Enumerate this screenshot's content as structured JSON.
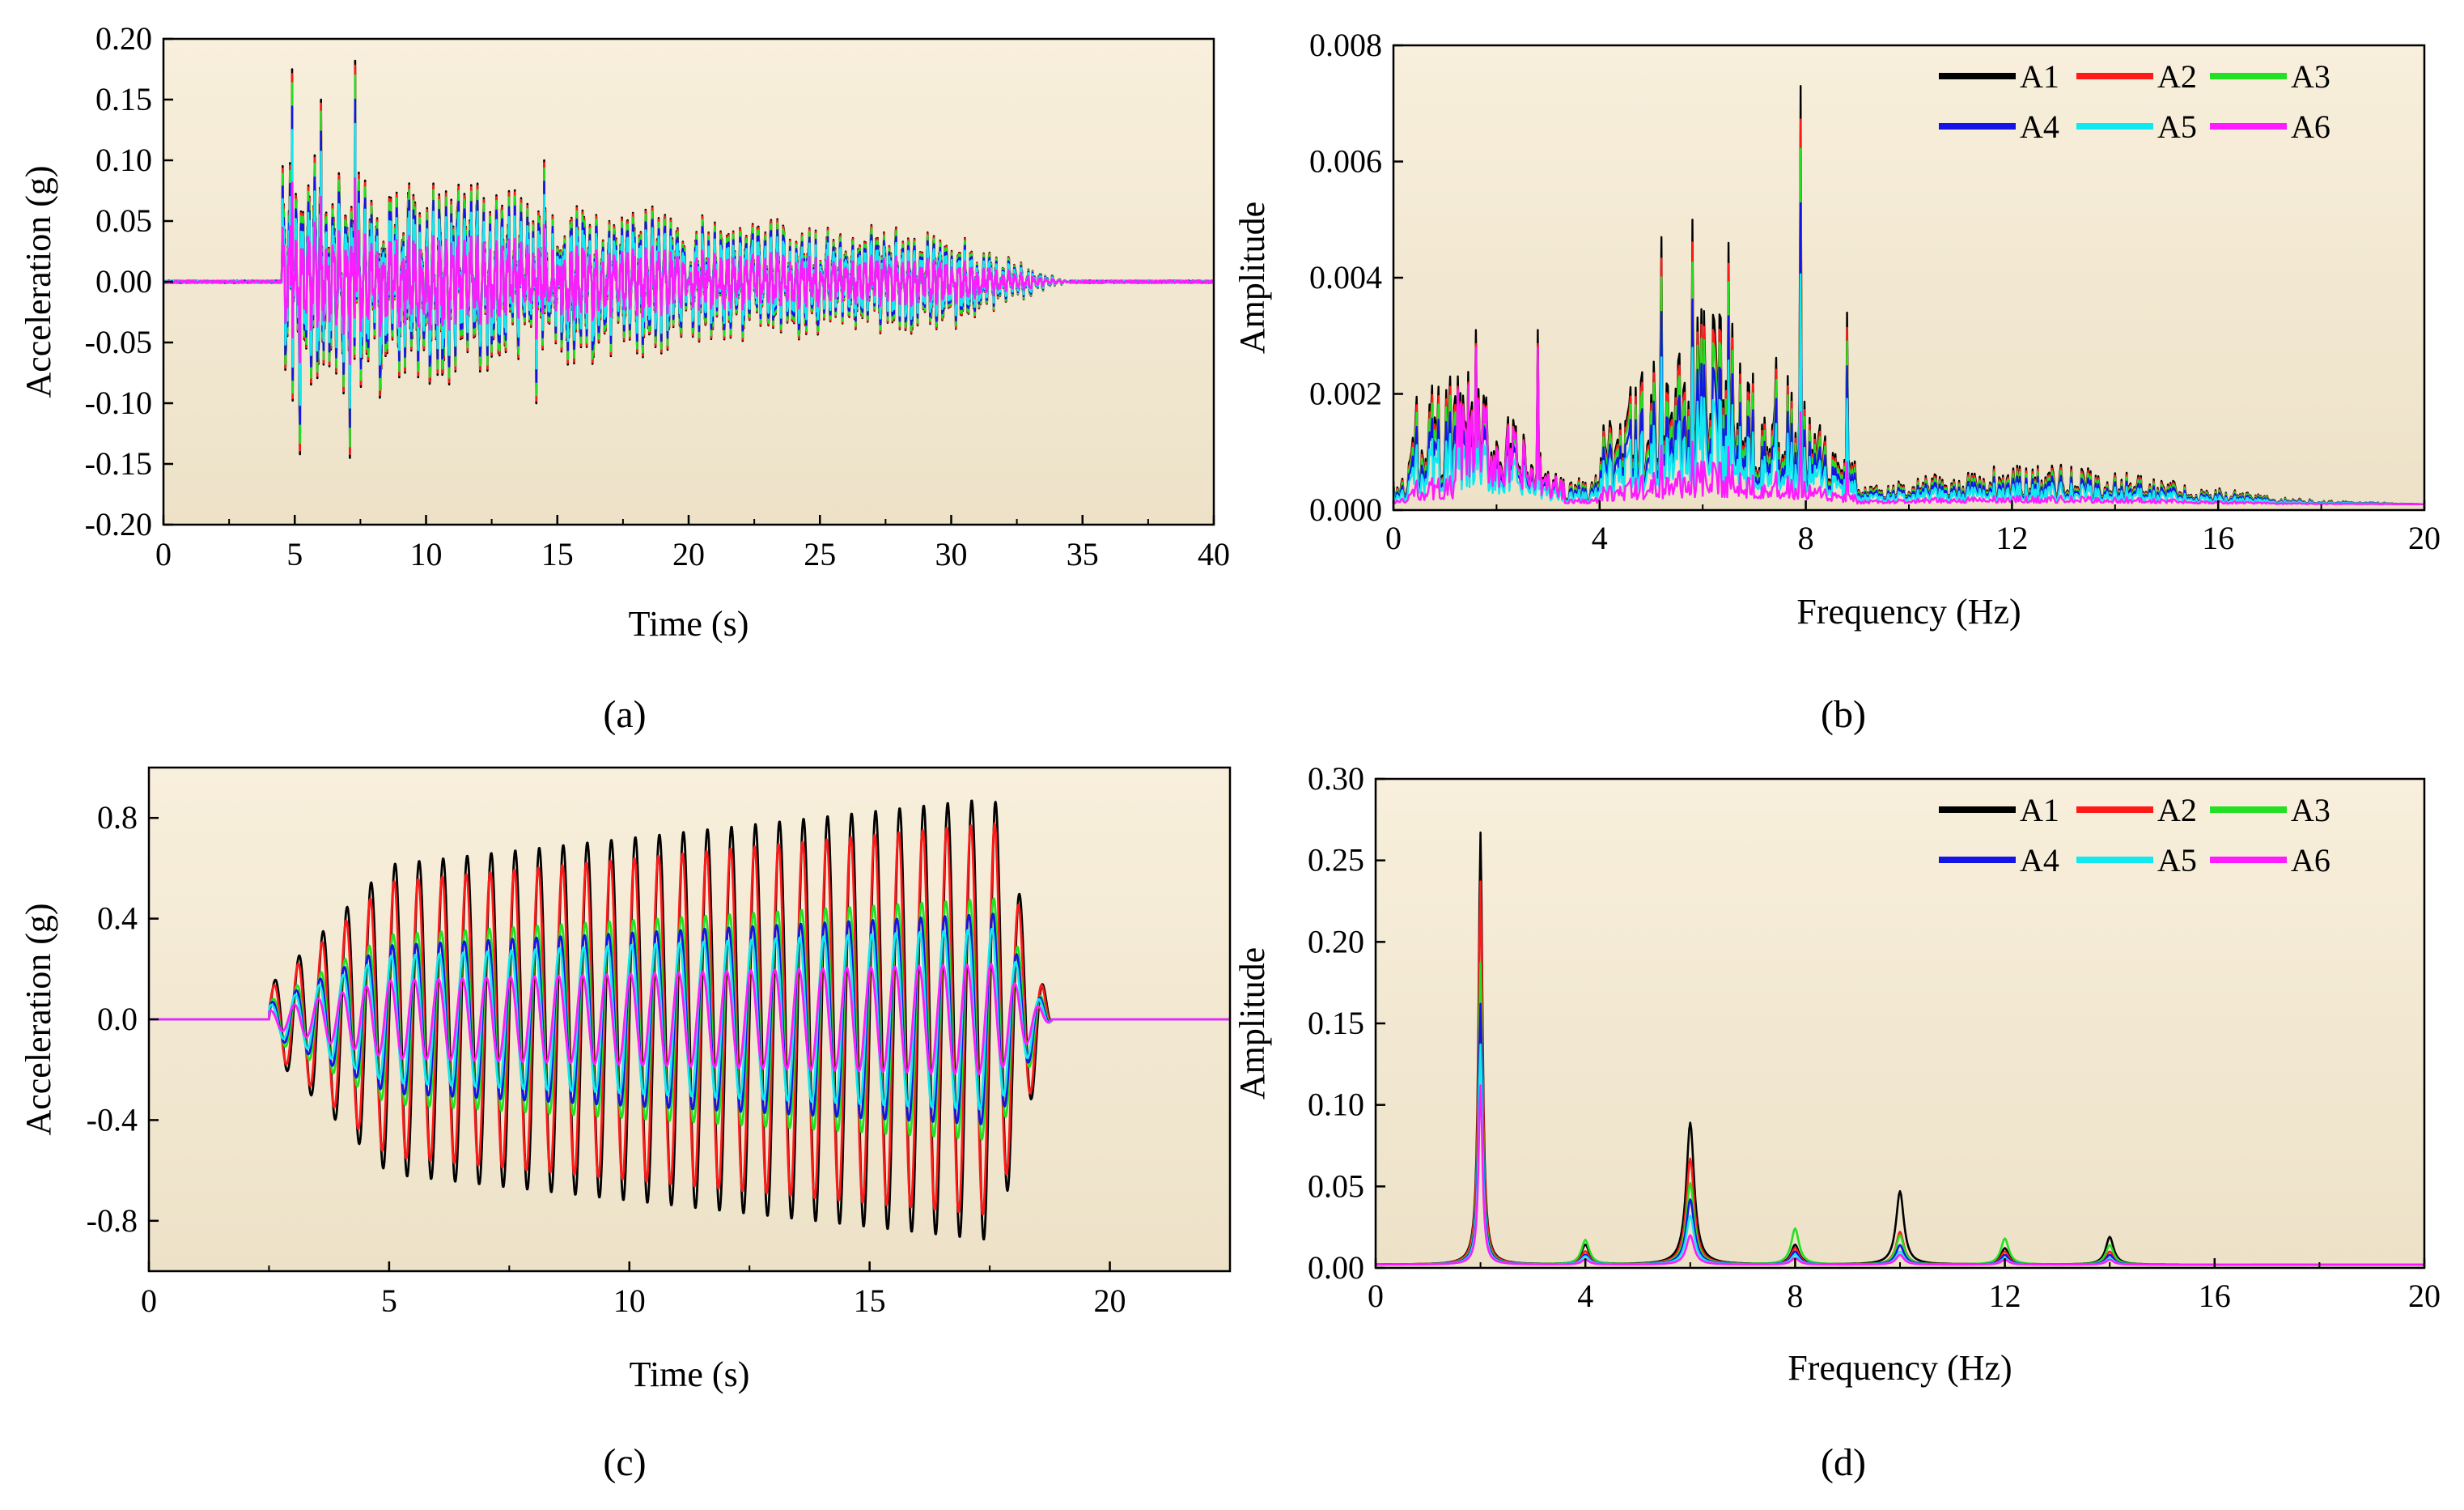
{
  "figure": {
    "colors": {
      "A1": "#000000",
      "A2": "#ff1a1a",
      "A3": "#22e022",
      "A4": "#1414e6",
      "A5": "#12e8f0",
      "A6": "#ff1aff",
      "plot_bg_top": "#f8efdc",
      "plot_bg_bottom": "#ede2c8"
    }
  },
  "chart_data": [
    {
      "id": "a",
      "panel_label": "(a)",
      "type": "line",
      "title": "",
      "xlabel": "Time (s)",
      "ylabel": "Acceleration (g)",
      "xlim": [
        0,
        40
      ],
      "ylim": [
        -0.2,
        0.2
      ],
      "xticks": [
        0,
        5,
        10,
        15,
        20,
        25,
        30,
        35,
        40
      ],
      "xtick_labels": [
        "0",
        "5",
        "10",
        "15",
        "20",
        "25",
        "30",
        "35",
        "40"
      ],
      "yticks": [
        -0.2,
        -0.15,
        -0.1,
        -0.05,
        0,
        0.05,
        0.1,
        0.15,
        0.2
      ],
      "ytick_labels": [
        "-0.20",
        "-0.15",
        "-0.10",
        "-0.05",
        "0.00",
        "0.05",
        "0.10",
        "0.15",
        "0.20"
      ],
      "signal": {
        "kind": "seismic",
        "onset": 4.5,
        "end": 34.5,
        "peaks": [
          {
            "t": 4.9,
            "v": 0.175
          },
          {
            "t": 5.2,
            "v": -0.142
          },
          {
            "t": 6.0,
            "v": 0.15
          },
          {
            "t": 7.3,
            "v": 0.182
          },
          {
            "t": 7.1,
            "v": -0.145
          },
          {
            "t": 14.5,
            "v": 0.1
          },
          {
            "t": 14.2,
            "v": -0.1
          }
        ]
      },
      "series": [
        {
          "name": "A1",
          "peak": 0.182
        },
        {
          "name": "A2",
          "peak": 0.178
        },
        {
          "name": "A3",
          "peak": 0.17
        },
        {
          "name": "A4",
          "peak": 0.15
        },
        {
          "name": "A5",
          "peak": 0.13
        },
        {
          "name": "A6",
          "peak": 0.085
        }
      ]
    },
    {
      "id": "b",
      "panel_label": "(b)",
      "type": "line",
      "title": "",
      "xlabel": "Frequency (Hz)",
      "ylabel": "Amplitude",
      "xlim": [
        0,
        20
      ],
      "ylim": [
        0,
        0.008
      ],
      "xticks": [
        0,
        4,
        8,
        12,
        16,
        20
      ],
      "xtick_labels": [
        "0",
        "4",
        "8",
        "12",
        "16",
        "20"
      ],
      "yticks": [
        0,
        0.002,
        0.004,
        0.006,
        0.008
      ],
      "ytick_labels": [
        "0.000",
        "0.002",
        "0.004",
        "0.006",
        "0.008"
      ],
      "legend": [
        "A1",
        "A2",
        "A3",
        "A4",
        "A5",
        "A6"
      ],
      "legend_position": "top-right",
      "spectrum": {
        "kind": "broadband",
        "peaks": [
          {
            "f": 7.9,
            "amp": 0.0072
          },
          {
            "f": 5.8,
            "amp": 0.0049
          },
          {
            "f": 6.5,
            "amp": 0.0045
          },
          {
            "f": 5.2,
            "amp": 0.0046
          },
          {
            "f": 8.8,
            "amp": 0.0033
          },
          {
            "f": 2.8,
            "amp": 0.003
          },
          {
            "f": 1.6,
            "amp": 0.003
          }
        ]
      },
      "series": [
        {
          "name": "A1",
          "scale": 1.0
        },
        {
          "name": "A2",
          "scale": 0.92
        },
        {
          "name": "A3",
          "scale": 0.85
        },
        {
          "name": "A4",
          "scale": 0.72
        },
        {
          "name": "A5",
          "scale": 0.55
        },
        {
          "name": "A6",
          "scale": 0.22
        }
      ]
    },
    {
      "id": "c",
      "panel_label": "(c)",
      "type": "line",
      "title": "",
      "xlabel": "Time (s)",
      "ylabel": "Acceleration (g)",
      "xlim": [
        0,
        22.5
      ],
      "ylim": [
        -1.0,
        1.0
      ],
      "xticks": [
        0,
        5,
        10,
        15,
        20
      ],
      "xtick_labels": [
        "0",
        "5",
        "10",
        "15",
        "20"
      ],
      "yticks": [
        -0.8,
        -0.4,
        0.0,
        0.4,
        0.8
      ],
      "ytick_labels": [
        "-0.8",
        "-0.4",
        "0.0",
        "0.4",
        "0.8"
      ],
      "signal": {
        "kind": "sinusoidal",
        "frequency_hz": 2,
        "onset": 2.5,
        "end": 18.8
      },
      "series": [
        {
          "name": "A1",
          "peak": 0.88
        },
        {
          "name": "A2",
          "peak": 0.78
        },
        {
          "name": "A3",
          "peak": 0.48
        },
        {
          "name": "A4",
          "peak": 0.42
        },
        {
          "name": "A5",
          "peak": 0.36
        },
        {
          "name": "A6",
          "peak": 0.22
        }
      ]
    },
    {
      "id": "d",
      "panel_label": "(d)",
      "type": "line",
      "title": "",
      "xlabel": "Frequency (Hz)",
      "ylabel": "Amplitude",
      "xlim": [
        0,
        20
      ],
      "ylim": [
        0,
        0.3
      ],
      "xticks": [
        0,
        4,
        8,
        12,
        16,
        20
      ],
      "xtick_labels": [
        "0",
        "4",
        "8",
        "12",
        "16",
        "20"
      ],
      "yticks": [
        0,
        0.05,
        0.1,
        0.15,
        0.2,
        0.25,
        0.3
      ],
      "ytick_labels": [
        "0.00",
        "0.05",
        "0.10",
        "0.15",
        "0.20",
        "0.25",
        "0.30"
      ],
      "legend": [
        "A1",
        "A2",
        "A3",
        "A4",
        "A5",
        "A6"
      ],
      "legend_position": "top-right",
      "series": [
        {
          "name": "A1",
          "peaks": [
            {
              "f": 2,
              "amp": 0.265
            },
            {
              "f": 6,
              "amp": 0.087
            },
            {
              "f": 10,
              "amp": 0.045
            },
            {
              "f": 14,
              "amp": 0.017
            },
            {
              "f": 4,
              "amp": 0.012
            },
            {
              "f": 8,
              "amp": 0.012
            },
            {
              "f": 12,
              "amp": 0.01
            }
          ]
        },
        {
          "name": "A2",
          "peaks": [
            {
              "f": 2,
              "amp": 0.235
            },
            {
              "f": 6,
              "amp": 0.065
            },
            {
              "f": 10,
              "amp": 0.02
            },
            {
              "f": 14,
              "amp": 0.008
            },
            {
              "f": 4,
              "amp": 0.008
            },
            {
              "f": 8,
              "amp": 0.01
            },
            {
              "f": 12,
              "amp": 0.008
            }
          ]
        },
        {
          "name": "A3",
          "peaks": [
            {
              "f": 2,
              "amp": 0.185
            },
            {
              "f": 6,
              "amp": 0.05
            },
            {
              "f": 10,
              "amp": 0.018
            },
            {
              "f": 14,
              "amp": 0.012
            },
            {
              "f": 4,
              "amp": 0.015
            },
            {
              "f": 8,
              "amp": 0.022
            },
            {
              "f": 12,
              "amp": 0.016
            }
          ]
        },
        {
          "name": "A4",
          "peaks": [
            {
              "f": 2,
              "amp": 0.16
            },
            {
              "f": 6,
              "amp": 0.04
            },
            {
              "f": 10,
              "amp": 0.012
            },
            {
              "f": 14,
              "amp": 0.006
            },
            {
              "f": 4,
              "amp": 0.006
            },
            {
              "f": 8,
              "amp": 0.008
            },
            {
              "f": 12,
              "amp": 0.006
            }
          ]
        },
        {
          "name": "A5",
          "peaks": [
            {
              "f": 2,
              "amp": 0.135
            },
            {
              "f": 6,
              "amp": 0.03
            },
            {
              "f": 10,
              "amp": 0.008
            },
            {
              "f": 14,
              "amp": 0.004
            },
            {
              "f": 4,
              "amp": 0.005
            },
            {
              "f": 8,
              "amp": 0.006
            },
            {
              "f": 12,
              "amp": 0.004
            }
          ]
        },
        {
          "name": "A6",
          "peaks": [
            {
              "f": 2,
              "amp": 0.11
            },
            {
              "f": 6,
              "amp": 0.018
            },
            {
              "f": 10,
              "amp": 0.006
            },
            {
              "f": 14,
              "amp": 0.003
            },
            {
              "f": 4,
              "amp": 0.003
            },
            {
              "f": 8,
              "amp": 0.004
            },
            {
              "f": 12,
              "amp": 0.003
            }
          ]
        }
      ]
    }
  ]
}
